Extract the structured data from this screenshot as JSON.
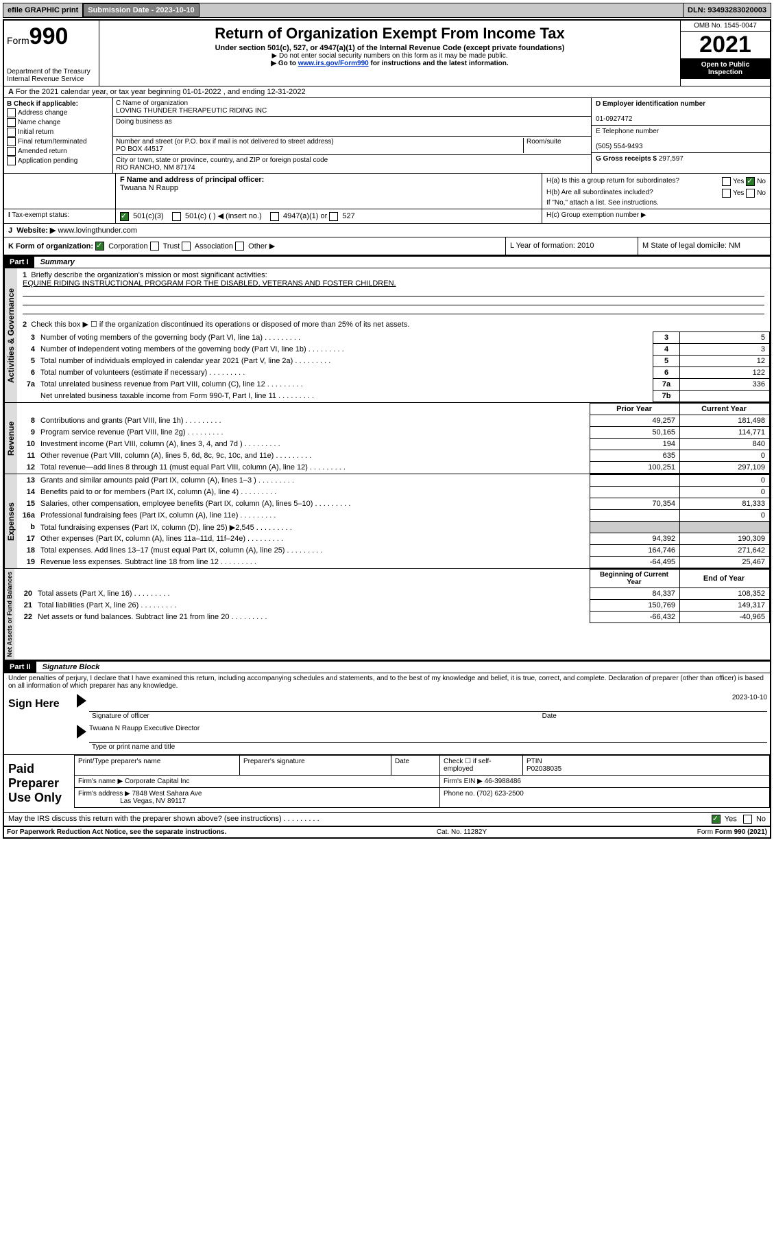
{
  "topbar": {
    "efile": "efile GRAPHIC print",
    "sub_label": "Submission Date - 2023-10-10",
    "dln": "DLN: 93493283020003"
  },
  "header": {
    "form_word": "Form",
    "form_no": "990",
    "dept": "Department of the Treasury",
    "irs": "Internal Revenue Service",
    "title": "Return of Organization Exempt From Income Tax",
    "subtitle": "Under section 501(c), 527, or 4947(a)(1) of the Internal Revenue Code (except private foundations)",
    "note1": "▶ Do not enter social security numbers on this form as it may be made public.",
    "note2_a": "▶ Go to ",
    "note2_link": "www.irs.gov/Form990",
    "note2_b": " for instructions and the latest information.",
    "omb": "OMB No. 1545-0047",
    "year": "2021",
    "open": "Open to Public Inspection"
  },
  "period": {
    "line": "For the 2021 calendar year, or tax year beginning 01-01-2022   , and ending 12-31-2022"
  },
  "boxB": {
    "label": "B Check if applicable:",
    "opts": [
      "Address change",
      "Name change",
      "Initial return",
      "Final return/terminated",
      "Amended return",
      "Application pending"
    ]
  },
  "boxC": {
    "name_lab": "C Name of organization",
    "name": "LOVING THUNDER THERAPEUTIC RIDING INC",
    "dba_lab": "Doing business as",
    "street_lab": "Number and street (or P.O. box if mail is not delivered to street address)",
    "room_lab": "Room/suite",
    "street": "PO BOX 44517",
    "city_lab": "City or town, state or province, country, and ZIP or foreign postal code",
    "city": "RIO RANCHO, NM  87174"
  },
  "boxD": {
    "lab": "D Employer identification number",
    "val": "01-0927472"
  },
  "boxE": {
    "lab": "E Telephone number",
    "val": "(505) 554-9493"
  },
  "boxG": {
    "lab": "G Gross receipts $",
    "val": "297,597"
  },
  "boxF": {
    "lab": "F  Name and address of principal officer:",
    "val": "Twuana N Raupp"
  },
  "boxH": {
    "ha": "H(a)  Is this a group return for subordinates?",
    "hb": "H(b)  Are all subordinates included?",
    "hb_note": "If \"No,\" attach a list. See instructions.",
    "hc": "H(c)  Group exemption number ▶",
    "yes": "Yes",
    "no": "No"
  },
  "rowI": {
    "lab": "Tax-exempt status:",
    "opt1": "501(c)(3)",
    "opt2": "501(c) (  ) ◀ (insert no.)",
    "opt3": "4947(a)(1) or",
    "opt4": "527"
  },
  "rowJ": {
    "lab": "Website: ▶",
    "val": "www.lovingthunder.com"
  },
  "rowK": {
    "lab": "K Form of organization:",
    "opts": [
      "Corporation",
      "Trust",
      "Association",
      "Other ▶"
    ]
  },
  "rowL": {
    "lab": "L Year of formation: 2010"
  },
  "rowM": {
    "lab": "M State of legal domicile: NM"
  },
  "part1": {
    "hdr": "Part I",
    "title": "Summary",
    "l1": "Briefly describe the organization's mission or most significant activities:",
    "mission": "EQUINE RIDING INSTRUCTIONAL PROGRAM FOR THE DISABLED, VETERANS AND FOSTER CHILDREN.",
    "l2": "Check this box ▶ ☐  if the organization discontinued its operations or disposed of more than 25% of its net assets.",
    "rows_gov": [
      {
        "n": "3",
        "d": "Number of voting members of the governing body (Part VI, line 1a)",
        "b": "3",
        "v": "5"
      },
      {
        "n": "4",
        "d": "Number of independent voting members of the governing body (Part VI, line 1b)",
        "b": "4",
        "v": "3"
      },
      {
        "n": "5",
        "d": "Total number of individuals employed in calendar year 2021 (Part V, line 2a)",
        "b": "5",
        "v": "12"
      },
      {
        "n": "6",
        "d": "Total number of volunteers (estimate if necessary)",
        "b": "6",
        "v": "122"
      },
      {
        "n": "7a",
        "d": "Total unrelated business revenue from Part VIII, column (C), line 12",
        "b": "7a",
        "v": "336"
      },
      {
        "n": "",
        "d": "Net unrelated business taxable income from Form 990-T, Part I, line 11",
        "b": "7b",
        "v": ""
      }
    ],
    "col_prior": "Prior Year",
    "col_curr": "Current Year",
    "rows_rev": [
      {
        "n": "8",
        "d": "Contributions and grants (Part VIII, line 1h)",
        "p": "49,257",
        "c": "181,498"
      },
      {
        "n": "9",
        "d": "Program service revenue (Part VIII, line 2g)",
        "p": "50,165",
        "c": "114,771"
      },
      {
        "n": "10",
        "d": "Investment income (Part VIII, column (A), lines 3, 4, and 7d )",
        "p": "194",
        "c": "840"
      },
      {
        "n": "11",
        "d": "Other revenue (Part VIII, column (A), lines 5, 6d, 8c, 9c, 10c, and 11e)",
        "p": "635",
        "c": "0"
      },
      {
        "n": "12",
        "d": "Total revenue—add lines 8 through 11 (must equal Part VIII, column (A), line 12)",
        "p": "100,251",
        "c": "297,109"
      }
    ],
    "rows_exp": [
      {
        "n": "13",
        "d": "Grants and similar amounts paid (Part IX, column (A), lines 1–3 )",
        "p": "",
        "c": "0"
      },
      {
        "n": "14",
        "d": "Benefits paid to or for members (Part IX, column (A), line 4)",
        "p": "",
        "c": "0"
      },
      {
        "n": "15",
        "d": "Salaries, other compensation, employee benefits (Part IX, column (A), lines 5–10)",
        "p": "70,354",
        "c": "81,333"
      },
      {
        "n": "16a",
        "d": "Professional fundraising fees (Part IX, column (A), line 11e)",
        "p": "",
        "c": "0"
      },
      {
        "n": "b",
        "d": "Total fundraising expenses (Part IX, column (D), line 25) ▶2,545",
        "p": "__shade__",
        "c": "__shade__"
      },
      {
        "n": "17",
        "d": "Other expenses (Part IX, column (A), lines 11a–11d, 11f–24e)",
        "p": "94,392",
        "c": "190,309"
      },
      {
        "n": "18",
        "d": "Total expenses. Add lines 13–17 (must equal Part IX, column (A), line 25)",
        "p": "164,746",
        "c": "271,642"
      },
      {
        "n": "19",
        "d": "Revenue less expenses. Subtract line 18 from line 12",
        "p": "-64,495",
        "c": "25,467"
      }
    ],
    "col_beg": "Beginning of Current Year",
    "col_end": "End of Year",
    "rows_net": [
      {
        "n": "20",
        "d": "Total assets (Part X, line 16)",
        "p": "84,337",
        "c": "108,352"
      },
      {
        "n": "21",
        "d": "Total liabilities (Part X, line 26)",
        "p": "150,769",
        "c": "149,317"
      },
      {
        "n": "22",
        "d": "Net assets or fund balances. Subtract line 21 from line 20",
        "p": "-66,432",
        "c": "-40,965"
      }
    ],
    "tabs": {
      "gov": "Activities & Governance",
      "rev": "Revenue",
      "exp": "Expenses",
      "net": "Net Assets or Fund Balances"
    }
  },
  "part2": {
    "hdr": "Part II",
    "title": "Signature Block",
    "penalties": "Under penalties of perjury, I declare that I have examined this return, including accompanying schedules and statements, and to the best of my knowledge and belief, it is true, correct, and complete. Declaration of preparer (other than officer) is based on all information of which preparer has any knowledge.",
    "sign_here": "Sign Here",
    "sig_officer": "Signature of officer",
    "sig_date": "2023-10-10",
    "date_lab": "Date",
    "name_title": "Twuana N Raupp  Executive Director",
    "name_title_lab": "Type or print name and title",
    "paid": "Paid Preparer Use Only",
    "p_name": "Print/Type preparer's name",
    "p_sig": "Preparer's signature",
    "p_date": "Date",
    "p_check": "Check ☐ if self-employed",
    "ptin_lab": "PTIN",
    "ptin": "P02038035",
    "firm_name_lab": "Firm's name      ▶",
    "firm_name": "Corporate Capital Inc",
    "firm_ein_lab": "Firm's EIN ▶",
    "firm_ein": "46-3988486",
    "firm_addr_lab": "Firm's address ▶",
    "firm_addr1": "7848 West Sahara Ave",
    "firm_addr2": "Las Vegas, NV  89117",
    "phone_lab": "Phone no.",
    "phone": "(702) 623-2500",
    "discuss": "May the IRS discuss this return with the preparer shown above? (see instructions)"
  },
  "footer": {
    "left": "For Paperwork Reduction Act Notice, see the separate instructions.",
    "mid": "Cat. No. 11282Y",
    "right": "Form 990 (2021)"
  }
}
